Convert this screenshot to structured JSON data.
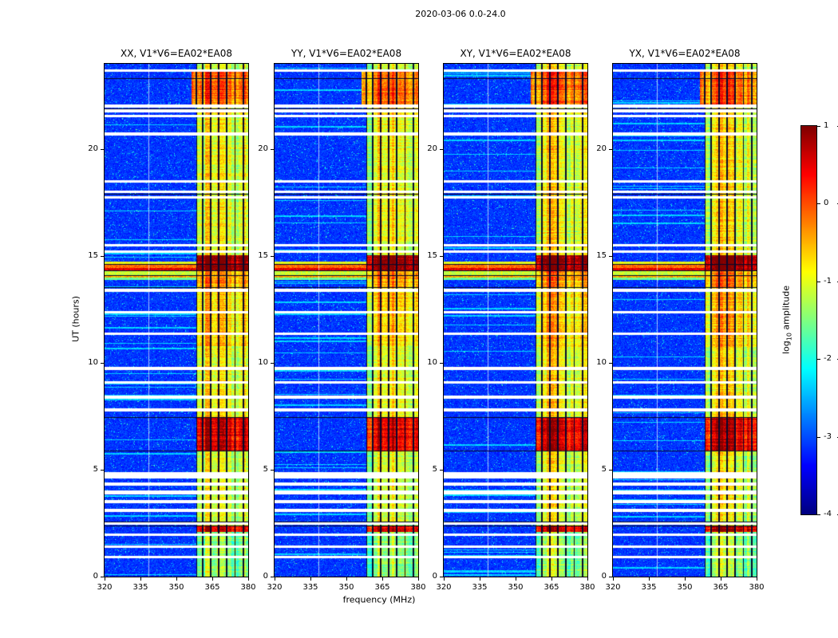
{
  "title": "2020-03-06 0.0-24.0",
  "xlabel": "frequency (MHz)",
  "ylabel": "UT (hours)",
  "colorbar_label": {
    "prefix": "log",
    "sub": "10",
    "suffix": " amplitude"
  },
  "chart_data": {
    "type": "heatmap",
    "title": "2020-03-06 0.0-24.0",
    "xlabel": "frequency (MHz)",
    "ylabel": "UT (hours)",
    "x_range": [
      320,
      380
    ],
    "x_ticks": [
      "320",
      "335",
      "350",
      "365",
      "380"
    ],
    "y_range": [
      0,
      24
    ],
    "y_ticks": [
      "0",
      "5",
      "10",
      "15",
      "20"
    ],
    "panels": [
      {
        "label": "XX, V1*V6=EA02*EA08",
        "seed": 11
      },
      {
        "label": "YY, V1*V6=EA02*EA08",
        "seed": 22
      },
      {
        "label": "XY, V1*V6=EA02*EA08",
        "seed": 33
      },
      {
        "label": "YX, V1*V6=EA02*EA08",
        "seed": 44
      }
    ],
    "colorbar": {
      "label": "log10 amplitude",
      "range": [
        -4,
        1
      ],
      "ticks": [
        "1",
        "0",
        "-1",
        "-2",
        "-3",
        "-4"
      ]
    },
    "features": {
      "band": {
        "range_mhz": [
          358.4,
          380.8
        ],
        "wide_range_mhz": [
          356.2,
          380.8
        ]
      },
      "channels": [
        358.3,
        360.9,
        364.3,
        367.7,
        371.1,
        374.5,
        377.9,
        380.4
      ],
      "pale_column_mhz": 338.6,
      "gaps": [
        [
          0.85,
          0.97
        ],
        [
          1.33,
          1.45
        ],
        [
          1.92,
          2.02
        ],
        [
          2.42,
          2.52
        ],
        [
          3.02,
          3.18
        ],
        [
          3.44,
          3.6
        ],
        [
          3.86,
          4.02
        ],
        [
          4.24,
          4.4
        ],
        [
          4.58,
          4.9
        ],
        [
          7.74,
          7.86
        ],
        [
          8.34,
          8.46
        ],
        [
          9.04,
          9.16
        ],
        [
          9.68,
          9.8
        ],
        [
          11.3,
          11.42
        ],
        [
          12.3,
          12.42
        ],
        [
          13.34,
          13.46
        ],
        [
          15.14,
          15.26
        ],
        [
          15.44,
          15.56
        ],
        [
          17.68,
          17.82
        ],
        [
          17.94,
          18.06
        ],
        [
          18.44,
          18.56
        ],
        [
          20.64,
          20.78
        ],
        [
          21.5,
          21.62
        ],
        [
          21.74,
          21.86
        ],
        [
          21.96,
          22.08
        ],
        [
          23.64,
          23.74
        ]
      ],
      "black_rows": [
        2.38,
        2.56,
        5.88,
        7.46,
        13.52,
        14.08,
        14.3,
        14.6,
        17.9,
        21.9,
        23.3
      ],
      "full_rows": [
        [
          13.9,
          14.0,
          -1.6
        ],
        [
          14.0,
          14.12,
          -0.45
        ],
        [
          14.12,
          14.28,
          -1.15
        ],
        [
          14.32,
          14.46,
          0.5
        ],
        [
          14.46,
          14.6,
          -0.15
        ],
        [
          14.6,
          14.74,
          -0.95
        ]
      ],
      "band_segments": [
        [
          0.0,
          2.08,
          -1.55
        ],
        [
          2.08,
          2.38,
          0.45
        ],
        [
          2.38,
          5.88,
          -1.2
        ],
        [
          5.88,
          7.46,
          0.4
        ],
        [
          7.46,
          10.8,
          -1.1
        ],
        [
          10.8,
          13.5,
          -0.8
        ],
        [
          13.5,
          14.32,
          -0.55
        ],
        [
          14.32,
          15.06,
          0.85
        ],
        [
          15.06,
          21.5,
          -1.1
        ],
        [
          21.5,
          22.0,
          -0.95
        ],
        [
          22.0,
          23.62,
          -0.25,
          "wide"
        ],
        [
          23.62,
          24.0,
          -1.2
        ]
      ]
    }
  }
}
